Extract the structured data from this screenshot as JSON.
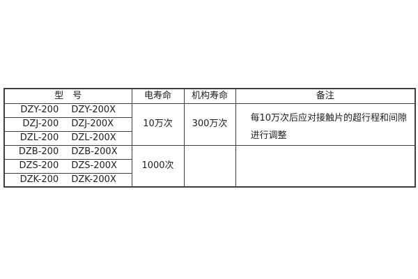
{
  "table": {
    "headers": {
      "model": "型　号",
      "electrical_life": "电寿命",
      "mechanism_life": "机构寿命",
      "remarks": "备注"
    },
    "groups": [
      {
        "rows": [
          {
            "model_a": "DZY-200",
            "model_b": "DZY-200X"
          },
          {
            "model_a": "DZJ-200",
            "model_b": "DZJ-200X"
          },
          {
            "model_a": "DZL-200",
            "model_b": "DZL-200X"
          }
        ],
        "electrical_life": "10万次",
        "mechanism_life": "300万次",
        "remarks_line1": "每10万次后应对接触片的超行程和间隙",
        "remarks_line2": "进行调整"
      },
      {
        "rows": [
          {
            "model_a": "DZB-200",
            "model_b": "DZB-200X"
          },
          {
            "model_a": "DZS-200",
            "model_b": "DZS-200X"
          },
          {
            "model_a": "DZK-200",
            "model_b": "DZK-200X"
          }
        ],
        "electrical_life": "1000次",
        "mechanism_life": "",
        "remarks_line1": "",
        "remarks_line2": ""
      }
    ],
    "colors": {
      "border": "#3d3d3d",
      "text": "#1c1c1c",
      "background": "#ffffff"
    }
  }
}
